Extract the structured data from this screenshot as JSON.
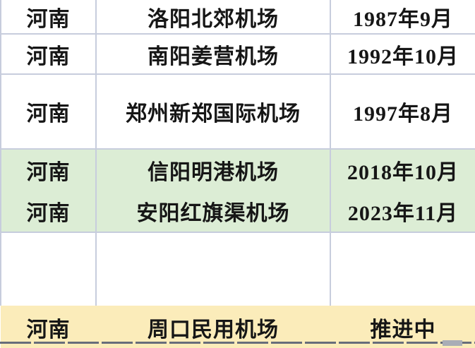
{
  "table": {
    "rows": [
      {
        "province": "河南",
        "airport": "洛阳北郊机场",
        "date": "1987年9月",
        "theme": "white"
      },
      {
        "province": "河南",
        "airport": "南阳姜营机场",
        "date": "1992年10月",
        "theme": "white"
      },
      {
        "province": "河南",
        "airport": "郑州新郑国际机场",
        "date": "1997年8月",
        "theme": "white"
      },
      {
        "province": "河南",
        "airport": "信阳明港机场",
        "date": "2018年10月",
        "theme": "green"
      },
      {
        "province": "河南",
        "airport": "安阳红旗渠机场",
        "date": "2023年11月",
        "theme": "green"
      },
      {
        "province": "",
        "airport": "",
        "date": "",
        "theme": "empty"
      },
      {
        "province": "河南",
        "airport": "周口民用机场",
        "date": "推进中",
        "theme": "yellow"
      }
    ]
  },
  "colors": {
    "green_highlight": "#dcedd5",
    "yellow_highlight": "#fbecba",
    "grid_border": "#c7cddd",
    "bottom_line": "#676d7a",
    "text": "#161616"
  }
}
